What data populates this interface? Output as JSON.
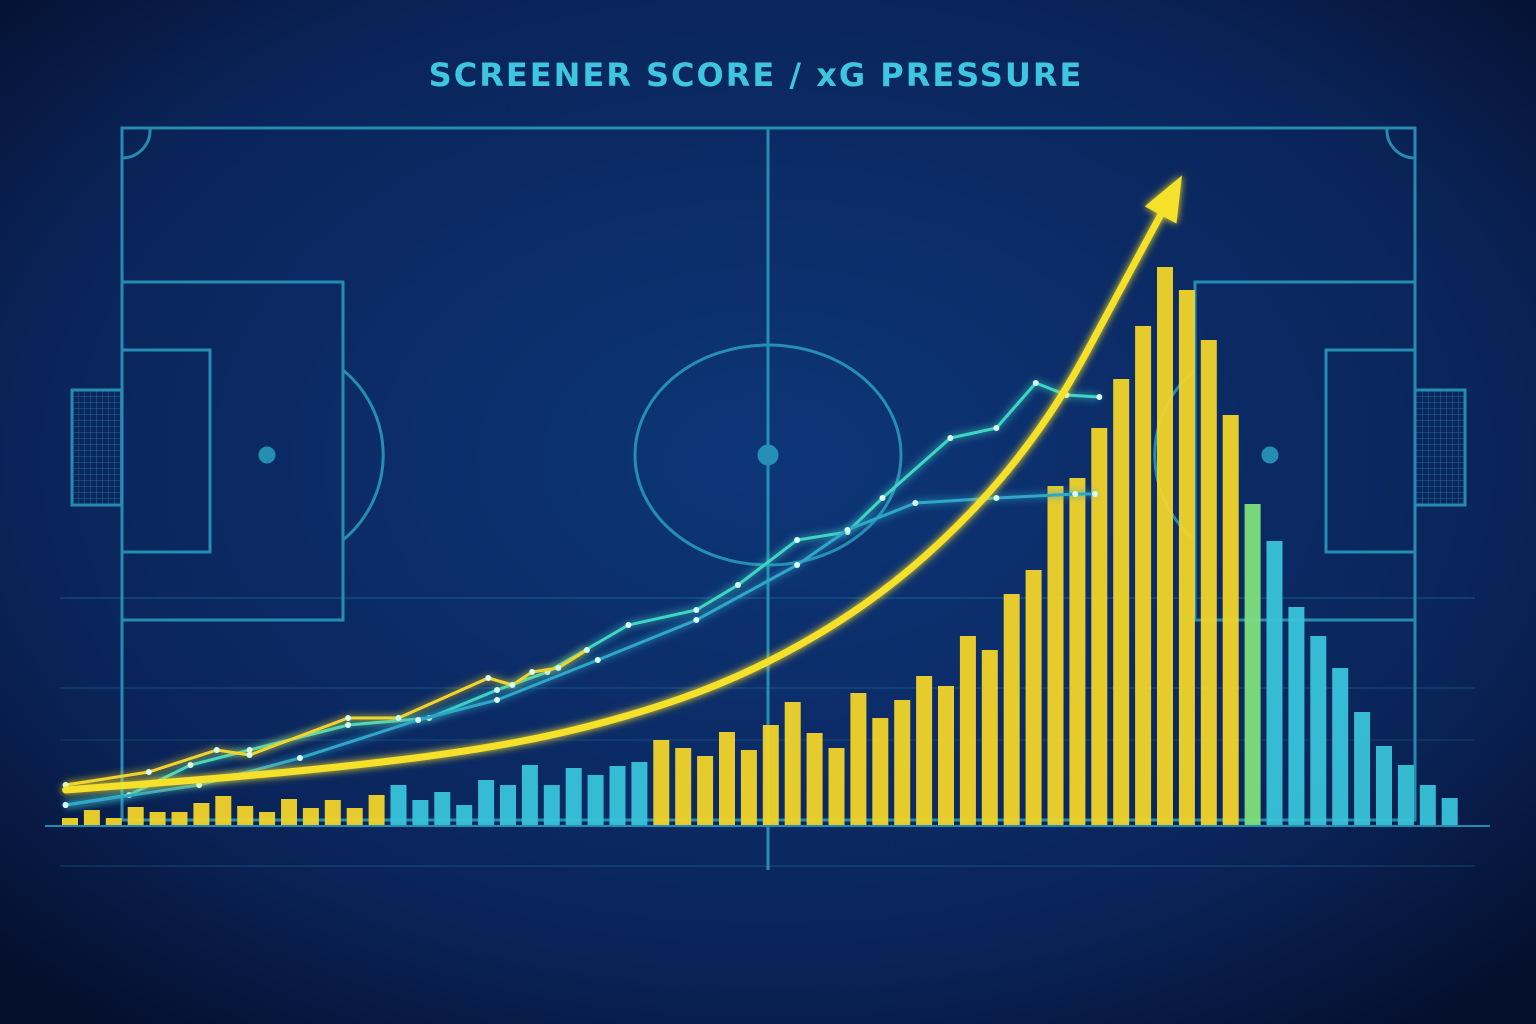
{
  "chart_data": {
    "type": "bar",
    "title": "SCREENER SCORE / xG PRESSURE",
    "values": [
      7,
      15,
      7,
      18,
      13,
      13,
      22,
      29,
      19,
      13,
      26,
      17,
      25,
      17,
      30,
      40,
      25,
      33,
      20,
      45,
      40,
      60,
      40,
      57,
      50,
      59,
      63,
      85,
      77,
      69,
      93,
      75,
      100,
      123,
      92,
      77,
      132,
      107,
      125,
      149,
      139,
      189,
      175,
      231,
      255,
      339,
      347,
      397,
      446,
      499,
      558,
      535,
      485,
      410,
      321,
      284,
      218,
      189,
      157,
      113,
      79,
      60,
      40,
      27
    ],
    "colors": [
      "#f2d42a",
      "#f2d42a",
      "#f2d42a",
      "#f2d42a",
      "#f2d42a",
      "#f2d42a",
      "#f2d42a",
      "#f2d42a",
      "#f2d42a",
      "#f2d42a",
      "#f2d42a",
      "#f2d42a",
      "#f2d42a",
      "#f2d42a",
      "#f2d42a",
      "#38c3d9",
      "#38c3d9",
      "#38c3d9",
      "#38c3d9",
      "#38c3d9",
      "#38c3d9",
      "#38c3d9",
      "#38c3d9",
      "#38c3d9",
      "#38c3d9",
      "#38c3d9",
      "#38c3d9",
      "#f2d42a",
      "#f2d42a",
      "#f2d42a",
      "#f2d42a",
      "#f2d42a",
      "#f2d42a",
      "#f2d42a",
      "#f2d42a",
      "#f2d42a",
      "#f2d42a",
      "#f2d42a",
      "#f2d42a",
      "#f2d42a",
      "#f2d42a",
      "#f2d42a",
      "#f2d42a",
      "#f2d42a",
      "#f2d42a",
      "#f2d42a",
      "#f2d42a",
      "#f2d42a",
      "#f2d42a",
      "#f2d42a",
      "#f2d42a",
      "#f2d42a",
      "#f2d42a",
      "#f2d42a",
      "#7fe07c",
      "#38c3d9",
      "#38c3d9",
      "#38c3d9",
      "#38c3d9",
      "#38c3d9",
      "#38c3d9",
      "#38c3d9",
      "#38c3d9",
      "#38c3d9"
    ],
    "lines": [
      {
        "color": "#3fd6c4",
        "x": [
          -0.2,
          2.7,
          5.5,
          8.2,
          12.7,
          16.4,
          19.5,
          21.8,
          25.5,
          28.6,
          30.5,
          33.2,
          35.5,
          37.1,
          40.2,
          42.3,
          44.1,
          45.5,
          47.0
        ],
        "values": [
          20,
          30,
          60,
          75,
          100,
          107,
          135,
          153,
          200,
          215,
          240,
          285,
          293,
          327,
          387,
          397,
          442,
          430,
          428
        ]
      },
      {
        "color": "#f2d42a",
        "x": [
          -0.2,
          3.6,
          6.7,
          8.2,
          12.7,
          15,
          19.1,
          20.2,
          21.1,
          22.3,
          23.6
        ],
        "values": [
          40,
          53,
          75,
          70,
          107,
          107,
          147,
          140,
          153,
          157,
          175
        ]
      },
      {
        "color": "#2fa7c9",
        "x": [
          -0.2,
          5.9,
          10.5,
          15.9,
          19.5,
          24.1,
          28.6,
          33.2,
          35.5,
          38.6,
          42.3,
          45.9,
          46.8
        ],
        "values": [
          20,
          40,
          67,
          105,
          125,
          165,
          205,
          260,
          295,
          322,
          327,
          331,
          331
        ]
      }
    ],
    "arrow": {
      "color": "#f5e02c",
      "x": [
        -0.2,
        10.5,
        19.5,
        25.9,
        31.4,
        36.8,
        41.4,
        45,
        47.7,
        49.8
      ],
      "values": [
        35,
        53,
        77,
        110,
        155,
        225,
        315,
        415,
        525,
        610
      ]
    }
  }
}
